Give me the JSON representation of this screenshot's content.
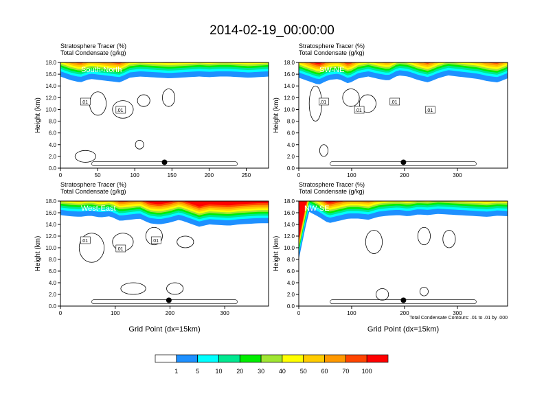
{
  "figure": {
    "title": "2014-02-19_00:00:00",
    "left_label_1": "Stratosphere Tracer   (%)",
    "right_label_1": "Total Condensate   (g/kg)"
  },
  "colorbar": {
    "labels": [
      "1",
      "5",
      "10",
      "20",
      "30",
      "40",
      "50",
      "60",
      "70",
      "100"
    ],
    "colors": [
      "#ffffff",
      "#1e90ff",
      "#00ffff",
      "#00e890",
      "#00ee00",
      "#a0e632",
      "#ffff00",
      "#ffcc00",
      "#ff9900",
      "#ff4500",
      "#ff0000"
    ]
  },
  "chart_data": [
    {
      "type": "heatmap",
      "panel_label": "South-North",
      "subtitle_lines": [
        "Stratosphere Tracer   (%)",
        "Total Condensate   (g/kg)"
      ],
      "ylabel": "Height (km)",
      "xlabel": "",
      "xlim": [
        0,
        280
      ],
      "xticks": [
        "0",
        "50",
        "100",
        "150",
        "200",
        "250"
      ],
      "xtick_values": [
        0,
        50,
        100,
        150,
        200,
        250
      ],
      "ylim": [
        0,
        18
      ],
      "yticks": [
        "0.0",
        "2.0",
        "4.0",
        "6.0",
        "8.0",
        "10.0",
        "12.0",
        "14.0",
        "16.0",
        "18.0"
      ],
      "marker": {
        "x": 140,
        "y": 1.0
      },
      "contour_labels": [
        ".01",
        ".01"
      ],
      "footnote": ""
    },
    {
      "type": "heatmap",
      "panel_label": "SW-NE",
      "subtitle_lines": [
        "Stratosphere Tracer   (%)",
        "Total Condensate   (g/kg)"
      ],
      "ylabel": "Height (km)",
      "xlabel": "",
      "xlim": [
        0,
        395
      ],
      "xticks": [
        "0",
        "100",
        "200",
        "300"
      ],
      "xtick_values": [
        0,
        100,
        200,
        300
      ],
      "ylim": [
        0,
        18
      ],
      "yticks": [
        "0.0",
        "2.0",
        "4.0",
        "6.0",
        "8.0",
        "10.0",
        "12.0",
        "14.0",
        "16.0",
        "18.0"
      ],
      "marker": {
        "x": 198,
        "y": 1.0
      },
      "contour_labels": [
        ".01",
        ".01",
        ".01",
        ".01"
      ],
      "footnote": ""
    },
    {
      "type": "heatmap",
      "panel_label": "West-East",
      "subtitle_lines": [
        "Stratosphere Tracer   (%)",
        "Total Condensate   (g/kg)"
      ],
      "ylabel": "Height (km)",
      "xlabel": "Grid Point (dx=15km)",
      "xlim": [
        0,
        380
      ],
      "xticks": [
        "0",
        "100",
        "200",
        "300"
      ],
      "xtick_values": [
        0,
        100,
        200,
        300
      ],
      "ylim": [
        0,
        18
      ],
      "yticks": [
        "0.0",
        "2.0",
        "4.0",
        "6.0",
        "8.0",
        "10.0",
        "12.0",
        "14.0",
        "16.0",
        "18.0"
      ],
      "marker": {
        "x": 198,
        "y": 1.0
      },
      "contour_labels": [
        ".01",
        ".01",
        ".01"
      ],
      "footnote": ""
    },
    {
      "type": "heatmap",
      "panel_label": "NW-SE",
      "subtitle_lines": [
        "Stratosphere Tracer   (%)",
        "Total Condensate   (g/kg)"
      ],
      "ylabel": "Height (km)",
      "xlabel": "Grid Point (dx=15km)",
      "xlim": [
        0,
        395
      ],
      "xticks": [
        "0",
        "100",
        "200",
        "300"
      ],
      "xtick_values": [
        0,
        100,
        200,
        300
      ],
      "ylim": [
        0,
        18
      ],
      "yticks": [
        "0.0",
        "2.0",
        "4.0",
        "6.0",
        "8.0",
        "10.0",
        "12.0",
        "14.0",
        "16.0",
        "18.0"
      ],
      "marker": {
        "x": 198,
        "y": 1.0
      },
      "contour_labels": [],
      "footnote": "Total Condensate Contours: .01 to .01 by .000"
    }
  ]
}
